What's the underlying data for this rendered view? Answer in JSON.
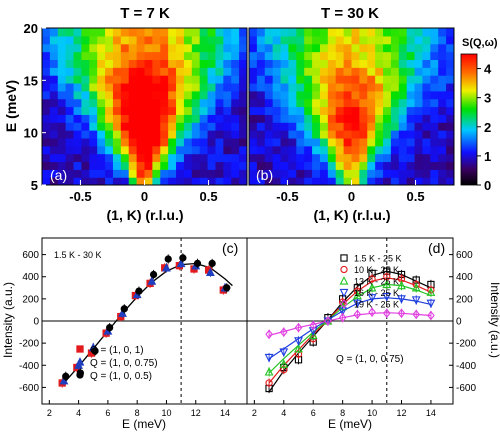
{
  "chart_data": [
    {
      "type": "heatmap",
      "panel": "(a)",
      "title": "T = 7 K",
      "xlabel": "(1, K) (r.l.u.)",
      "ylabel": "E (meV)",
      "xlim": [
        -0.8,
        0.8
      ],
      "ylim": [
        5,
        20
      ],
      "xticks": [
        "-0.5",
        "0",
        "0.5"
      ],
      "yticks": [
        "5",
        "10",
        "15",
        "20"
      ],
      "intensity_peak_K": 0.0,
      "intensity_peak_E": 11.0,
      "peak_value": 4.3
    },
    {
      "type": "heatmap",
      "panel": "(b)",
      "title": "T = 30 K",
      "xlabel": "(1, K) (r.l.u.)",
      "xlim": [
        -0.8,
        0.8
      ],
      "ylim": [
        5,
        20
      ],
      "xticks": [
        "-0.5",
        "0",
        "0.5"
      ],
      "intensity_peak_K": 0.0,
      "intensity_peak_E": 11.0,
      "peak_value": 3.4
    },
    {
      "type": "colorbar",
      "label": "S(Q,ω)",
      "range": [
        0,
        4.5
      ],
      "ticks": [
        "0",
        "1",
        "2",
        "3",
        "4"
      ]
    },
    {
      "type": "scatter",
      "panel": "(c)",
      "annotation": "1.5 K - 30 K",
      "xlabel": "E (meV)",
      "ylabel": "Intensity (a.u.)",
      "xlim": [
        1.5,
        15.5
      ],
      "ylim": [
        -750,
        750
      ],
      "xticks": [
        "2",
        "4",
        "6",
        "8",
        "10",
        "12",
        "14"
      ],
      "yticks": [
        "-600",
        "-400",
        "-200",
        "0",
        "200",
        "400",
        "600"
      ],
      "vline_x": 11,
      "series": [
        {
          "name": "Q = (1, 0, 1)",
          "color": "#e31a1c",
          "marker": "square",
          "x": [
            3,
            4,
            5,
            6,
            7,
            8,
            9,
            10,
            11,
            12,
            13,
            14
          ],
          "y": [
            -560,
            -420,
            -290,
            -110,
            40,
            230,
            340,
            480,
            500,
            470,
            460,
            280
          ]
        },
        {
          "name": "Q = (1, 0, 0.75)",
          "color": "#1f3fbf",
          "marker": "triangle",
          "x": [
            3,
            4,
            5,
            6,
            7,
            8,
            9,
            10,
            11,
            12,
            13,
            14
          ],
          "y": [
            -540,
            -400,
            -240,
            -90,
            70,
            240,
            360,
            480,
            520,
            500,
            440,
            300
          ]
        },
        {
          "name": "Q = (1, 0, 0.5)",
          "color": "#000000",
          "marker": "circle",
          "x": [
            3,
            4,
            5,
            6,
            7,
            8,
            9,
            10,
            11,
            12,
            13,
            14
          ],
          "y": [
            -500,
            -470,
            -270,
            -60,
            110,
            270,
            420,
            560,
            570,
            520,
            520,
            300
          ]
        }
      ],
      "fit_line": {
        "x": [
          3,
          4,
          5,
          6,
          7,
          8,
          9,
          10,
          11,
          12,
          13,
          14,
          14.5
        ],
        "y": [
          -560,
          -410,
          -250,
          -90,
          70,
          220,
          350,
          450,
          510,
          520,
          480,
          380,
          320
        ]
      }
    },
    {
      "type": "scatter",
      "panel": "(d)",
      "annotation": "Q = (1, 0, 0.75)",
      "xlabel": "E (meV)",
      "ylabel": "Intensity (a.u.)",
      "xlim": [
        1.5,
        15.5
      ],
      "ylim": [
        -750,
        750
      ],
      "xticks": [
        "2",
        "4",
        "6",
        "8",
        "10",
        "12",
        "14"
      ],
      "yticks": [
        "-600",
        "-400",
        "-200",
        "0",
        "200",
        "400",
        "600"
      ],
      "vline_x": 11,
      "series": [
        {
          "name": "1.5 K - 25 K",
          "color": "#000000",
          "marker": "square",
          "x": [
            3,
            4,
            5,
            6,
            7,
            8,
            9,
            10,
            11,
            12,
            13,
            14
          ],
          "y": [
            -610,
            -420,
            -350,
            -190,
            30,
            200,
            300,
            430,
            450,
            420,
            370,
            330
          ],
          "fit": [
            -640,
            -450,
            -290,
            -140,
            10,
            170,
            310,
            410,
            450,
            420,
            360,
            300
          ]
        },
        {
          "name": "10 K - 25 K",
          "color": "#e31a1c",
          "marker": "circle",
          "x": [
            3,
            4,
            5,
            6,
            7,
            8,
            9,
            10,
            11,
            12,
            13,
            14
          ],
          "y": [
            -560,
            -440,
            -300,
            -160,
            0,
            170,
            270,
            380,
            400,
            380,
            330,
            280
          ],
          "fit": [
            -560,
            -400,
            -260,
            -120,
            10,
            150,
            270,
            360,
            390,
            370,
            320,
            260
          ]
        },
        {
          "name": "13 K - 25 K",
          "color": "#22c322",
          "marker": "triangle",
          "x": [
            3,
            4,
            5,
            6,
            7,
            8,
            9,
            10,
            11,
            12,
            13,
            14
          ],
          "y": [
            -460,
            -390,
            -250,
            -130,
            0,
            130,
            230,
            300,
            330,
            320,
            300,
            260
          ],
          "fit": [
            -470,
            -340,
            -220,
            -100,
            10,
            120,
            220,
            300,
            330,
            320,
            280,
            230
          ]
        },
        {
          "name": "16 K - 25 K",
          "color": "#1f3fdf",
          "marker": "triangle-down",
          "x": [
            3,
            4,
            5,
            6,
            7,
            8,
            9,
            10,
            11,
            12,
            13,
            14
          ],
          "y": [
            -330,
            -280,
            -180,
            -90,
            0,
            90,
            160,
            210,
            220,
            200,
            190,
            160
          ],
          "fit": [
            -340,
            -250,
            -160,
            -70,
            10,
            90,
            160,
            200,
            210,
            200,
            180,
            150
          ]
        },
        {
          "name": "19 K - 25 K",
          "color": "#e040e0",
          "marker": "diamond",
          "x": [
            3,
            4,
            5,
            6,
            7,
            8,
            9,
            10,
            11,
            12,
            13,
            14
          ],
          "y": [
            -120,
            -100,
            -60,
            -40,
            0,
            30,
            60,
            80,
            70,
            70,
            60,
            50
          ],
          "fit": [
            -130,
            -95,
            -60,
            -30,
            0,
            30,
            55,
            70,
            75,
            70,
            60,
            50
          ]
        }
      ]
    }
  ],
  "colors": {
    "heatmap_bg": "#0a0018"
  }
}
